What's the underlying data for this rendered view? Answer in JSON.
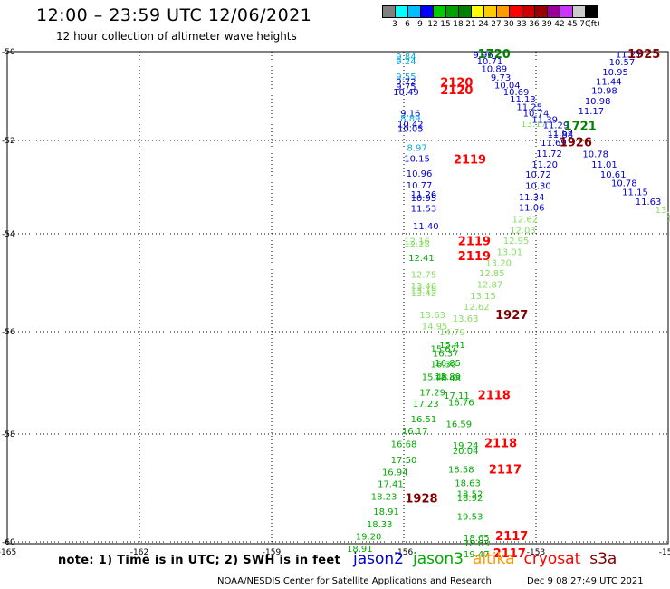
{
  "header": {
    "title": "12:00  –  23:59 UTC 12/06/2021",
    "subtitle": "12 hour collection of altimeter wave heights"
  },
  "legend_scale": {
    "colors": [
      "#808080",
      "#00ffff",
      "#00bfff",
      "#0000ff",
      "#00cc00",
      "#00a000",
      "#008000",
      "#ffff00",
      "#ffcc00",
      "#ff9900",
      "#ff0000",
      "#cc0000",
      "#990000",
      "#990099",
      "#cc33ff",
      "#cccccc",
      "#000000"
    ],
    "labels": [
      "3",
      "6",
      "9",
      "12",
      "15",
      "18",
      "21",
      "24",
      "27",
      "30",
      "33",
      "36",
      "39",
      "42",
      "45",
      "70",
      "(ft)"
    ]
  },
  "map": {
    "y_ticks": [
      "-50",
      "-52",
      "-54",
      "-56",
      "-58",
      "-60"
    ],
    "x_ticks": [
      "-165",
      "-162",
      "-159",
      "-156",
      "-153",
      "-150"
    ]
  },
  "observations": [
    {
      "t": "9.84",
      "c": "#00aadd",
      "lon": -155.95,
      "lat": -50.1
    },
    {
      "t": "9.24",
      "c": "#00aadd",
      "lon": -155.95,
      "lat": -50.2
    },
    {
      "t": "9.55",
      "c": "#00aadd",
      "lon": -155.95,
      "lat": -50.55
    },
    {
      "t": "9.72",
      "c": "#0000cc",
      "lon": -155.95,
      "lat": -50.66
    },
    {
      "t": "9.75",
      "c": "#0000cc",
      "lon": -155.95,
      "lat": -50.78
    },
    {
      "t": "10.49",
      "c": "#0000cc",
      "lon": -155.95,
      "lat": -50.9
    },
    {
      "t": "9.16",
      "c": "#0000cc",
      "lon": -155.85,
      "lat": -51.38
    },
    {
      "t": "8.89",
      "c": "#00aadd",
      "lon": -155.85,
      "lat": -51.49
    },
    {
      "t": "10.42",
      "c": "#0000cc",
      "lon": -155.85,
      "lat": -51.62
    },
    {
      "t": "10.05",
      "c": "#0000cc",
      "lon": -155.85,
      "lat": -51.72
    },
    {
      "t": "8.97",
      "c": "#00aadd",
      "lon": -155.7,
      "lat": -52.15
    },
    {
      "t": "10.15",
      "c": "#0000cc",
      "lon": -155.7,
      "lat": -52.38
    },
    {
      "t": "10.96",
      "c": "#0000cc",
      "lon": -155.65,
      "lat": -52.7
    },
    {
      "t": "10.77",
      "c": "#0000cc",
      "lon": -155.65,
      "lat": -52.95
    },
    {
      "t": "11.26",
      "c": "#0000cc",
      "lon": -155.55,
      "lat": -53.15
    },
    {
      "t": "10.95",
      "c": "#0000cc",
      "lon": -155.55,
      "lat": -53.22
    },
    {
      "t": "11.53",
      "c": "#0000cc",
      "lon": -155.55,
      "lat": -53.45
    },
    {
      "t": "11.40",
      "c": "#0000cc",
      "lon": -155.5,
      "lat": -53.83
    },
    {
      "t": "12.16",
      "c": "#88dd66",
      "lon": -155.7,
      "lat": -54.14
    },
    {
      "t": "12.28",
      "c": "#88dd66",
      "lon": -155.7,
      "lat": -54.2
    },
    {
      "t": "12.41",
      "c": "#00aa00",
      "lon": -155.6,
      "lat": -54.48
    },
    {
      "t": "12.75",
      "c": "#88dd66",
      "lon": -155.55,
      "lat": -54.82
    },
    {
      "t": "13.46",
      "c": "#88dd66",
      "lon": -155.55,
      "lat": -55.06
    },
    {
      "t": "13.19",
      "c": "#88dd66",
      "lon": -155.55,
      "lat": -55.14
    },
    {
      "t": "13.42",
      "c": "#88dd66",
      "lon": -155.55,
      "lat": -55.2
    },
    {
      "t": "13.63",
      "c": "#88dd66",
      "lon": -155.35,
      "lat": -55.65
    },
    {
      "t": "14.95",
      "c": "#88dd66",
      "lon": -155.3,
      "lat": -55.88
    },
    {
      "t": "14.79",
      "c": "#88dd66",
      "lon": -154.9,
      "lat": -56.0
    },
    {
      "t": "15.41",
      "c": "#00aa00",
      "lon": -154.9,
      "lat": -56.25
    },
    {
      "t": "15.67",
      "c": "#00aa00",
      "lon": -155.1,
      "lat": -56.33
    },
    {
      "t": "16.37",
      "c": "#00aa00",
      "lon": -155.05,
      "lat": -56.42
    },
    {
      "t": "16.85",
      "c": "#00aa00",
      "lon": -155.0,
      "lat": -56.6
    },
    {
      "t": "16.30",
      "c": "#00aa00",
      "lon": -155.1,
      "lat": -56.63
    },
    {
      "t": "15.48",
      "c": "#00aa00",
      "lon": -155.3,
      "lat": -56.88
    },
    {
      "t": "15.89",
      "c": "#00aa00",
      "lon": -155.0,
      "lat": -56.87
    },
    {
      "t": "16.48",
      "c": "#00aa00",
      "lon": -155.0,
      "lat": -56.9
    },
    {
      "t": "17.29",
      "c": "#00aa00",
      "lon": -155.35,
      "lat": -57.18
    },
    {
      "t": "17.11",
      "c": "#00aa00",
      "lon": -154.8,
      "lat": -57.24
    },
    {
      "t": "17.23",
      "c": "#00aa00",
      "lon": -155.5,
      "lat": -57.4
    },
    {
      "t": "16.76",
      "c": "#00aa00",
      "lon": -154.7,
      "lat": -57.37
    },
    {
      "t": "16.51",
      "c": "#00aa00",
      "lon": -155.55,
      "lat": -57.7
    },
    {
      "t": "16.59",
      "c": "#00aa00",
      "lon": -154.75,
      "lat": -57.8
    },
    {
      "t": "16.17",
      "c": "#00aa00",
      "lon": -155.75,
      "lat": -57.93
    },
    {
      "t": "16.68",
      "c": "#00aa00",
      "lon": -156.0,
      "lat": -58.18
    },
    {
      "t": "19.24",
      "c": "#00aa00",
      "lon": -154.6,
      "lat": -58.2
    },
    {
      "t": "20.04",
      "c": "#00aa00",
      "lon": -154.6,
      "lat": -58.3
    },
    {
      "t": "17.50",
      "c": "#00aa00",
      "lon": -156.0,
      "lat": -58.47
    },
    {
      "t": "16.94",
      "c": "#00aa00",
      "lon": -156.2,
      "lat": -58.7
    },
    {
      "t": "18.58",
      "c": "#00aa00",
      "lon": -154.7,
      "lat": -58.65
    },
    {
      "t": "17.41",
      "c": "#00aa00",
      "lon": -156.3,
      "lat": -58.92
    },
    {
      "t": "18.63",
      "c": "#00aa00",
      "lon": -154.55,
      "lat": -58.9
    },
    {
      "t": "18.52",
      "c": "#00aa00",
      "lon": -154.5,
      "lat": -59.1
    },
    {
      "t": "18.92",
      "c": "#00aa00",
      "lon": -154.5,
      "lat": -59.18
    },
    {
      "t": "18.23",
      "c": "#00aa00",
      "lon": -156.45,
      "lat": -59.15
    },
    {
      "t": "18.91",
      "c": "#00aa00",
      "lon": -156.4,
      "lat": -59.43
    },
    {
      "t": "19.53",
      "c": "#00aa00",
      "lon": -154.5,
      "lat": -59.52
    },
    {
      "t": "18.33",
      "c": "#00aa00",
      "lon": -156.55,
      "lat": -59.66
    },
    {
      "t": "19.20",
      "c": "#00aa00",
      "lon": -156.8,
      "lat": -59.89
    },
    {
      "t": "18.65",
      "c": "#00aa00",
      "lon": -154.35,
      "lat": -59.92
    },
    {
      "t": "18.63",
      "c": "#00aa00",
      "lon": -154.35,
      "lat": -60.02
    },
    {
      "t": "18.91",
      "c": "#00aa00",
      "lon": -157.0,
      "lat": -60.12
    },
    {
      "t": "19.47",
      "c": "#00aa00",
      "lon": -154.35,
      "lat": -60.22
    },
    {
      "t": "9.96",
      "c": "#0000cc",
      "lon": -154.2,
      "lat": -50.06
    },
    {
      "t": "10.71",
      "c": "#0000cc",
      "lon": -154.05,
      "lat": -50.2
    },
    {
      "t": "10.89",
      "c": "#0000cc",
      "lon": -153.95,
      "lat": -50.38
    },
    {
      "t": "9.73",
      "c": "#0000cc",
      "lon": -153.8,
      "lat": -50.57
    },
    {
      "t": "10.04",
      "c": "#0000cc",
      "lon": -153.65,
      "lat": -50.74
    },
    {
      "t": "10.69",
      "c": "#0000cc",
      "lon": -153.45,
      "lat": -50.9
    },
    {
      "t": "11.13",
      "c": "#0000cc",
      "lon": -153.3,
      "lat": -51.06
    },
    {
      "t": "11.25",
      "c": "#0000cc",
      "lon": -153.15,
      "lat": -51.23
    },
    {
      "t": "10.74",
      "c": "#0000cc",
      "lon": -153.0,
      "lat": -51.38
    },
    {
      "t": "11.39",
      "c": "#0000cc",
      "lon": -152.8,
      "lat": -51.52
    },
    {
      "t": "13.17",
      "c": "#88dd66",
      "lon": -153.05,
      "lat": -51.61
    },
    {
      "t": "11.29",
      "c": "#0000cc",
      "lon": -152.55,
      "lat": -51.64
    },
    {
      "t": "11.62",
      "c": "#0000cc",
      "lon": -152.45,
      "lat": -51.82
    },
    {
      "t": "11.88",
      "c": "#0000cc",
      "lon": -152.45,
      "lat": -51.86
    },
    {
      "t": "11.69",
      "c": "#0000cc",
      "lon": -152.6,
      "lat": -52.04
    },
    {
      "t": "11.72",
      "c": "#0000cc",
      "lon": -152.7,
      "lat": -52.27
    },
    {
      "t": "11.20",
      "c": "#0000cc",
      "lon": -152.8,
      "lat": -52.5
    },
    {
      "t": "10.72",
      "c": "#0000cc",
      "lon": -152.95,
      "lat": -52.72
    },
    {
      "t": "10.30",
      "c": "#0000cc",
      "lon": -152.95,
      "lat": -52.96
    },
    {
      "t": "11.34",
      "c": "#0000cc",
      "lon": -153.1,
      "lat": -53.2
    },
    {
      "t": "11.06",
      "c": "#0000cc",
      "lon": -153.1,
      "lat": -53.43
    },
    {
      "t": "12.62",
      "c": "#88dd66",
      "lon": -153.25,
      "lat": -53.68
    },
    {
      "t": "12.03",
      "c": "#88dd66",
      "lon": -153.3,
      "lat": -53.91
    },
    {
      "t": "12.95",
      "c": "#88dd66",
      "lon": -153.45,
      "lat": -54.13
    },
    {
      "t": "13.01",
      "c": "#88dd66",
      "lon": -153.6,
      "lat": -54.36
    },
    {
      "t": "13.20",
      "c": "#88dd66",
      "lon": -153.85,
      "lat": -54.58
    },
    {
      "t": "12.85",
      "c": "#88dd66",
      "lon": -154.0,
      "lat": -54.8
    },
    {
      "t": "12.87",
      "c": "#88dd66",
      "lon": -154.05,
      "lat": -55.03
    },
    {
      "t": "13.15",
      "c": "#88dd66",
      "lon": -154.2,
      "lat": -55.26
    },
    {
      "t": "12.62",
      "c": "#88dd66",
      "lon": -154.35,
      "lat": -55.48
    },
    {
      "t": "13.63",
      "c": "#88dd66",
      "lon": -154.6,
      "lat": -55.72
    },
    {
      "t": "11.21",
      "c": "#0000cc",
      "lon": -150.9,
      "lat": -50.05
    },
    {
      "t": "10.57",
      "c": "#0000cc",
      "lon": -151.05,
      "lat": -50.22
    },
    {
      "t": "10.95",
      "c": "#0000cc",
      "lon": -151.2,
      "lat": -50.45
    },
    {
      "t": "11.44",
      "c": "#0000cc",
      "lon": -151.35,
      "lat": -50.66
    },
    {
      "t": "10.98",
      "c": "#0000cc",
      "lon": -151.45,
      "lat": -50.87
    },
    {
      "t": "10.98",
      "c": "#0000cc",
      "lon": -151.6,
      "lat": -51.1
    },
    {
      "t": "11.17",
      "c": "#0000cc",
      "lon": -151.75,
      "lat": -51.33
    },
    {
      "t": "10.78",
      "c": "#0000cc",
      "lon": -151.65,
      "lat": -52.28
    },
    {
      "t": "11.01",
      "c": "#0000cc",
      "lon": -151.45,
      "lat": -52.5
    },
    {
      "t": "10.61",
      "c": "#0000cc",
      "lon": -151.25,
      "lat": -52.72
    },
    {
      "t": "10.78",
      "c": "#0000cc",
      "lon": -151.0,
      "lat": -52.9
    },
    {
      "t": "11.15",
      "c": "#0000cc",
      "lon": -150.75,
      "lat": -53.1
    },
    {
      "t": "11.63",
      "c": "#0000cc",
      "lon": -150.45,
      "lat": -53.3
    },
    {
      "t": "13.01",
      "c": "#88dd66",
      "lon": -150.0,
      "lat": -53.48
    },
    {
      "t": "13.3",
      "c": "#88dd66",
      "lon": -149.8,
      "lat": -53.66
    },
    {
      "t": "1720",
      "c": "#008000",
      "bold": true,
      "size": 13,
      "lon": -153.95,
      "lat": -50.06
    },
    {
      "t": "1721",
      "c": "#008000",
      "bold": true,
      "size": 13,
      "lon": -152.0,
      "lat": -51.68
    },
    {
      "t": "1925",
      "c": "#800000",
      "bold": true,
      "size": 13,
      "lon": -150.55,
      "lat": -50.06
    },
    {
      "t": "1926",
      "c": "#800000",
      "bold": true,
      "size": 13,
      "lon": -152.1,
      "lat": -52.05
    },
    {
      "t": "2120",
      "c": "#ff0000",
      "bold": true,
      "size": 13,
      "lon": -154.8,
      "lat": -50.7
    },
    {
      "t": "2120",
      "c": "#ff0000",
      "bold": true,
      "size": 13,
      "lon": -154.8,
      "lat": -50.88
    },
    {
      "t": "2119",
      "c": "#ff0000",
      "bold": true,
      "size": 13,
      "lon": -154.5,
      "lat": -52.42
    },
    {
      "t": "2119",
      "c": "#ff0000",
      "bold": true,
      "size": 13,
      "lon": -154.4,
      "lat": -54.16
    },
    {
      "t": "2119",
      "c": "#ff0000",
      "bold": true,
      "size": 13,
      "lon": -154.4,
      "lat": -54.46
    },
    {
      "t": "1927",
      "c": "#800000",
      "bold": true,
      "size": 13,
      "lon": -153.55,
      "lat": -55.67
    },
    {
      "t": "2118",
      "c": "#ff0000",
      "bold": true,
      "size": 13,
      "lon": -153.95,
      "lat": -57.25
    },
    {
      "t": "2118",
      "c": "#ff0000",
      "bold": true,
      "size": 13,
      "lon": -153.8,
      "lat": -58.18
    },
    {
      "t": "2117",
      "c": "#ff0000",
      "bold": true,
      "size": 13,
      "lon": -153.7,
      "lat": -58.66
    },
    {
      "t": "1928",
      "c": "#800000",
      "bold": true,
      "size": 13,
      "lon": -155.6,
      "lat": -59.2
    },
    {
      "t": "2117",
      "c": "#ff0000",
      "bold": true,
      "size": 13,
      "lon": -153.55,
      "lat": -59.9
    },
    {
      "t": "2117",
      "c": "#ff0000",
      "bold": true,
      "size": 13,
      "lon": -153.6,
      "lat": -60.22
    }
  ],
  "footer": {
    "note": "note:  1)  Time is in UTC;  2)  SWH is in feet",
    "satellites": [
      {
        "name": "jason2",
        "color": "#0000cc"
      },
      {
        "name": "jason3",
        "color": "#00aa00"
      },
      {
        "name": "altika",
        "color": "#ff9900"
      },
      {
        "name": "cryosat",
        "color": "#ff0000"
      },
      {
        "name": "s3a",
        "color": "#800000"
      }
    ],
    "credit": "NOAA/NESDIS Center for Satellite Applications and Research",
    "timestamp": "Dec  9 08:27:49 UTC 2021"
  }
}
